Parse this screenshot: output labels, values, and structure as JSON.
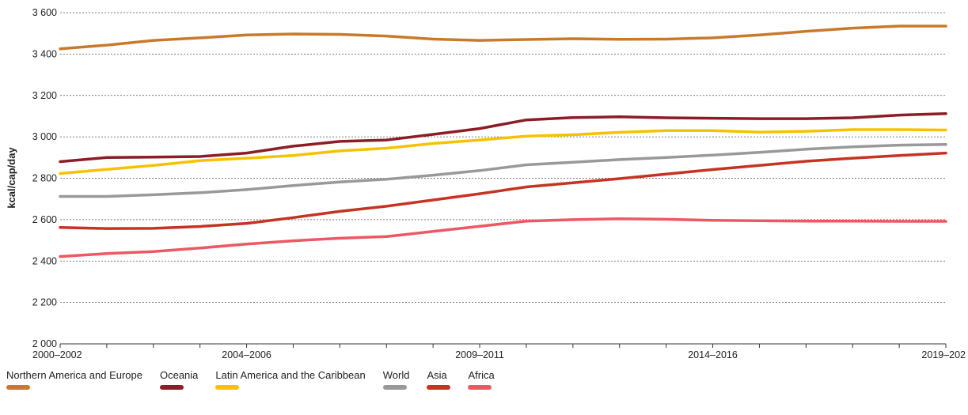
{
  "chart_data": {
    "type": "line",
    "ylabel": "kcal/cap/day",
    "xlabel": "",
    "ylim": [
      2000,
      3600
    ],
    "yticks": [
      2000,
      2200,
      2400,
      2600,
      2800,
      3000,
      3200,
      3400,
      3600
    ],
    "ytick_labels": [
      "2 000",
      "2 200",
      "2 400",
      "2 600",
      "2 800",
      "3 000",
      "3 200",
      "3 400",
      "3 600"
    ],
    "x_count": 20,
    "xtick_labels": [
      {
        "index": 0,
        "label": "2000–2002"
      },
      {
        "index": 4,
        "label": "2004–2006"
      },
      {
        "index": 9,
        "label": "2009–2011"
      },
      {
        "index": 14,
        "label": "2014–2016"
      },
      {
        "index": 19,
        "label": "2019–202"
      }
    ],
    "grid": true,
    "legend_position": "bottom",
    "series": [
      {
        "name": "Northern America and Europe",
        "color": "#c87a2c",
        "values": [
          3425,
          3443,
          3466,
          3478,
          3492,
          3497,
          3495,
          3487,
          3472,
          3466,
          3470,
          3474,
          3471,
          3472,
          3478,
          3492,
          3510,
          3525,
          3535,
          3535
        ]
      },
      {
        "name": "Oceania",
        "color": "#8c1d26",
        "values": [
          2880,
          2900,
          2902,
          2905,
          2922,
          2955,
          2978,
          2985,
          3012,
          3040,
          3082,
          3093,
          3097,
          3092,
          3090,
          3088,
          3088,
          3092,
          3105,
          3112
        ]
      },
      {
        "name": "Latin America and the Caribbean",
        "color": "#f6c200",
        "values": [
          2823,
          2843,
          2862,
          2885,
          2897,
          2910,
          2932,
          2945,
          2968,
          2985,
          3003,
          3010,
          3022,
          3030,
          3030,
          3023,
          3027,
          3035,
          3035,
          3033
        ]
      },
      {
        "name": "World",
        "color": "#999999",
        "values": [
          2712,
          2712,
          2720,
          2730,
          2745,
          2765,
          2782,
          2795,
          2815,
          2837,
          2865,
          2877,
          2890,
          2900,
          2912,
          2925,
          2940,
          2952,
          2960,
          2963
        ]
      },
      {
        "name": "Asia",
        "color": "#c63322",
        "values": [
          2562,
          2557,
          2558,
          2567,
          2582,
          2610,
          2640,
          2665,
          2695,
          2725,
          2758,
          2778,
          2798,
          2820,
          2842,
          2862,
          2882,
          2897,
          2910,
          2922
        ]
      },
      {
        "name": "Africa",
        "color": "#ec5863",
        "values": [
          2422,
          2436,
          2446,
          2463,
          2482,
          2498,
          2510,
          2518,
          2543,
          2568,
          2593,
          2600,
          2604,
          2602,
          2597,
          2595,
          2593,
          2593,
          2592,
          2592
        ]
      }
    ]
  }
}
